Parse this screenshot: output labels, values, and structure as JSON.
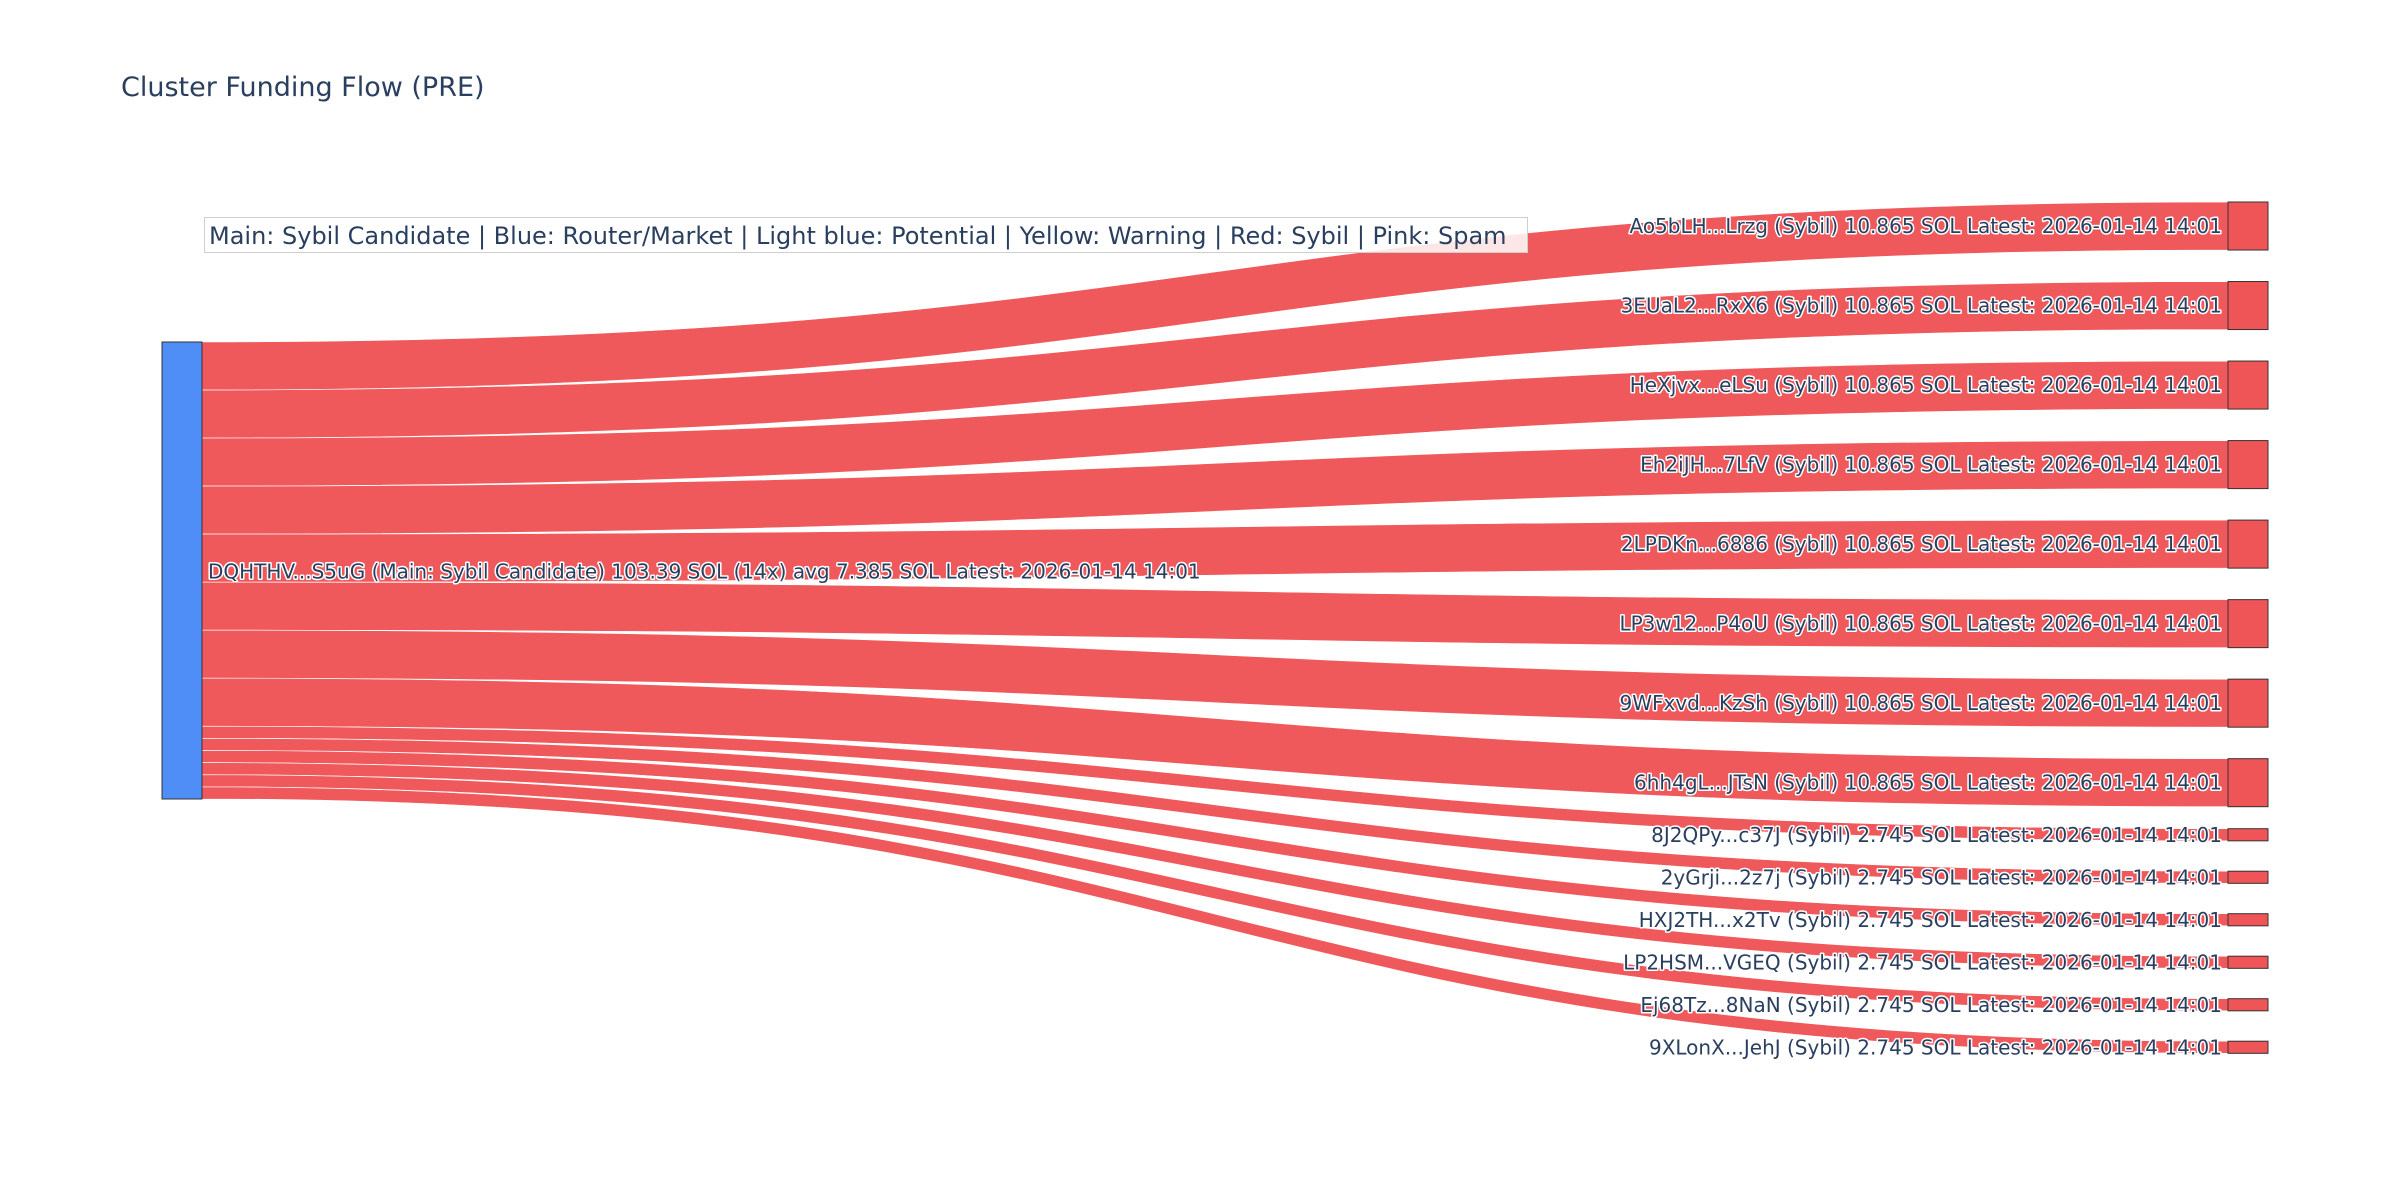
{
  "title": "Cluster Funding Flow (PRE)",
  "legend_text": "Main: Sybil Candidate  |  Blue: Router/Market | Light blue: Potential | Yellow: Warning | Red: Sybil | Pink: Spam",
  "colors": {
    "source_node": "#4f8ef7",
    "target_node": "#ef5456",
    "link": "#ef5456",
    "text": "#2a3f5f"
  },
  "source": {
    "label": "DQHTHV...S5uG (Main: Sybil Candidate) 103.39 SOL (14x) avg 7.385 SOL Latest: 2026-01-14 14:01",
    "value": 103.39
  },
  "targets": [
    {
      "label": "Ao5bLH...Lrzg (Sybil) 10.865 SOL Latest: 2026-01-14 14:01",
      "value": 10.865
    },
    {
      "label": "3EUaL2...RxX6 (Sybil) 10.865 SOL Latest: 2026-01-14 14:01",
      "value": 10.865
    },
    {
      "label": "HeXjvx...eLSu (Sybil) 10.865 SOL Latest: 2026-01-14 14:01",
      "value": 10.865
    },
    {
      "label": "Eh2iJH...7LfV (Sybil) 10.865 SOL Latest: 2026-01-14 14:01",
      "value": 10.865
    },
    {
      "label": "2LPDKn...6886 (Sybil) 10.865 SOL Latest: 2026-01-14 14:01",
      "value": 10.865
    },
    {
      "label": "LP3w12...P4oU (Sybil) 10.865 SOL Latest: 2026-01-14 14:01",
      "value": 10.865
    },
    {
      "label": "9WFxvd...KzSh (Sybil) 10.865 SOL Latest: 2026-01-14 14:01",
      "value": 10.865
    },
    {
      "label": "6hh4gL...JTsN (Sybil) 10.865 SOL Latest: 2026-01-14 14:01",
      "value": 10.865
    },
    {
      "label": "8J2QPy...c37J (Sybil) 2.745 SOL Latest: 2026-01-14 14:01",
      "value": 2.745
    },
    {
      "label": "2yGrji...2z7j (Sybil) 2.745 SOL Latest: 2026-01-14 14:01",
      "value": 2.745
    },
    {
      "label": "HXJ2TH...x2Tv (Sybil) 2.745 SOL Latest: 2026-01-14 14:01",
      "value": 2.745
    },
    {
      "label": "LP2HSM...VGEQ (Sybil) 2.745 SOL Latest: 2026-01-14 14:01",
      "value": 2.745
    },
    {
      "label": "Ej68Tz...8NaN (Sybil) 2.745 SOL Latest: 2026-01-14 14:01",
      "value": 2.745
    },
    {
      "label": "9XLonX...JehJ (Sybil) 2.745 SOL Latest: 2026-01-14 14:01",
      "value": 2.745
    }
  ]
}
